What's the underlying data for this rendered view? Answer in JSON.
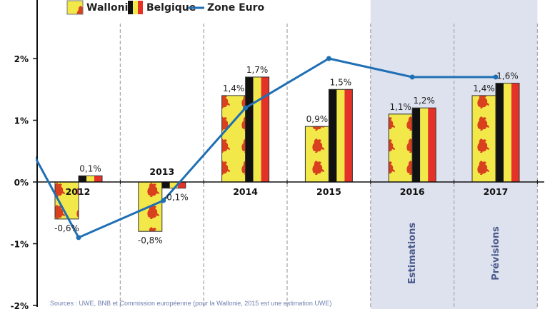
{
  "chart_data": {
    "type": "bar",
    "categories": [
      "2012",
      "2013",
      "2014",
      "2015",
      "2016",
      "2017"
    ],
    "series": [
      {
        "name": "Wallonie",
        "type": "bar",
        "values": [
          -0.6,
          -0.8,
          1.4,
          0.9,
          1.1,
          1.4
        ],
        "labels": [
          "-0,6%",
          "-0,8%",
          "1,4%",
          "0,9%",
          "1,1%",
          "1,4%"
        ],
        "colors": [
          "#f2e84a",
          "#d9401e"
        ]
      },
      {
        "name": "Belgique",
        "type": "bar",
        "values": [
          0.1,
          -0.1,
          1.7,
          1.5,
          1.2,
          1.6
        ],
        "labels": [
          "0,1%",
          "-0,1%",
          "1,7%",
          "1,5%",
          "1,2%",
          "1,6%"
        ],
        "colors": [
          "#111111",
          "#f2e84a",
          "#e53228"
        ]
      },
      {
        "name": "Zone Euro",
        "type": "line",
        "x": [
          "2011",
          "2012",
          "2013",
          "2014",
          "2015",
          "2016",
          "2017"
        ],
        "values": [
          1.6,
          -0.9,
          -0.3,
          1.2,
          2.0,
          1.7,
          1.7
        ],
        "color": "#1f6fb5"
      }
    ],
    "y_ticks": [
      "2%",
      "1%",
      "0%",
      "-1%",
      "-2%"
    ],
    "y_tick_values": [
      2,
      1,
      0,
      -1,
      -2
    ],
    "ylim": [
      -2,
      2.6
    ],
    "shaded_regions": [
      {
        "category": "2016",
        "label": "Estimations",
        "color": "#dde2ee"
      },
      {
        "category": "2017",
        "label": "Prévisions",
        "color": "#dde2ee"
      }
    ],
    "legend_placement": "top",
    "grid": false,
    "source": "Sources : UWE, BNB et Commission européenne (pour la Wallonie, 2015 est une estimation UWE)"
  }
}
